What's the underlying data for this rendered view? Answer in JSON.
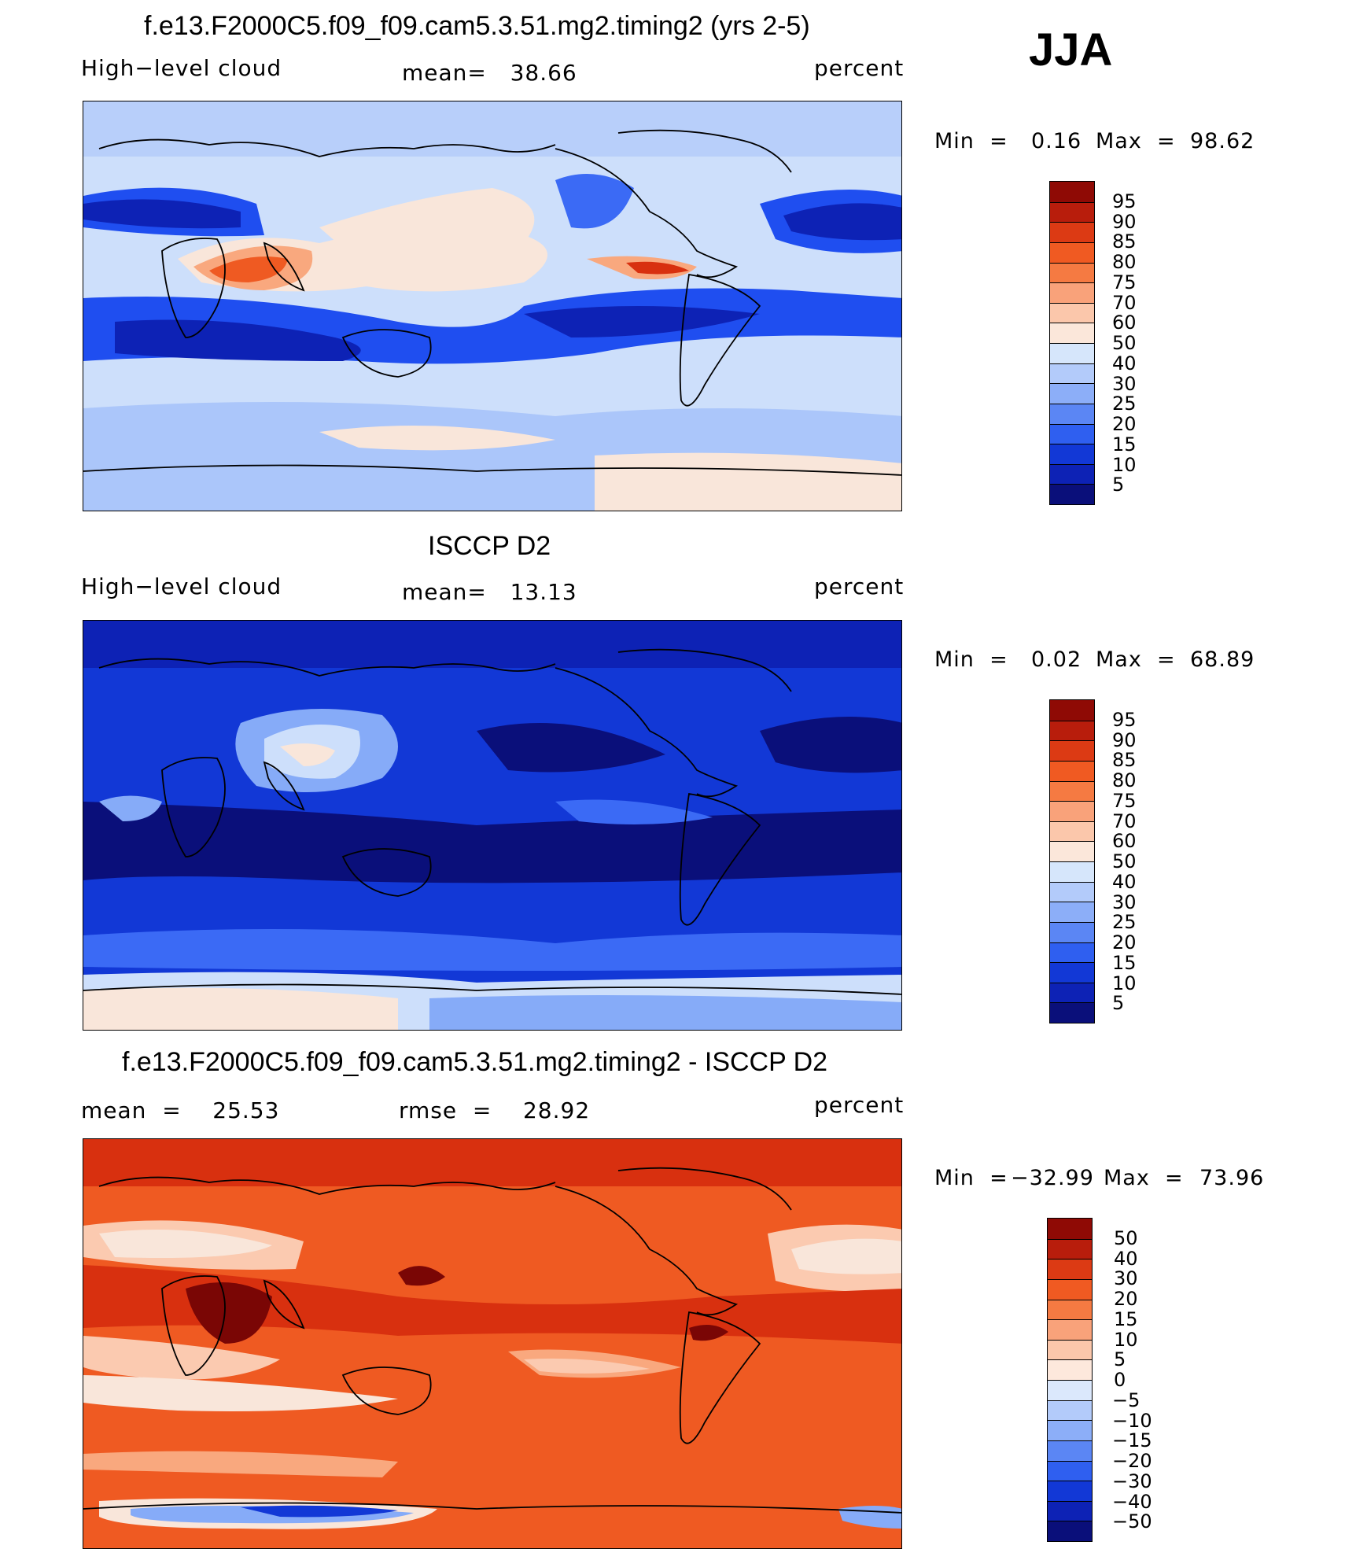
{
  "season": "JJA",
  "palette": {
    "diverging": [
      "#0a0f7a",
      "#0d22b5",
      "#1238d6",
      "#1f4ef0",
      "#3b6af5",
      "#5d8af7",
      "#86abf8",
      "#abc6fa",
      "#cddffb",
      "#f9e6da",
      "#fbcab0",
      "#f9a87e",
      "#f5844f",
      "#ef5a22",
      "#d8300f",
      "#a8150a",
      "#7a0605"
    ]
  },
  "panels": [
    {
      "title": "f.e13.F2000C5.f09_f09.cam5.3.51.mg2.timing2 (yrs 2-5)",
      "left_label": "High−level cloud",
      "center_label": "mean=   38.66",
      "right_label": "percent",
      "min_label": "Min  =",
      "min_value": "0.16",
      "max_label": "Max  =",
      "max_value": "98.62",
      "map_icon": "world-map-high-cloud-model",
      "colorbar": {
        "levels": [
          "95",
          "90",
          "85",
          "80",
          "75",
          "70",
          "60",
          "50",
          "40",
          "30",
          "25",
          "20",
          "15",
          "10",
          "5"
        ],
        "colors": [
          "#8f0a05",
          "#b81d0c",
          "#dc3a14",
          "#f05a22",
          "#f57a42",
          "#f9a27a",
          "#fbc7ab",
          "#fbe7da",
          "#d6e6fb",
          "#b3cbfa",
          "#8caef8",
          "#5b86f4",
          "#2f5ff0",
          "#1238d6",
          "#0d22b5",
          "#0a0f7a"
        ]
      }
    },
    {
      "title": "ISCCP D2",
      "left_label": "High−level cloud",
      "center_label": "mean=   13.13",
      "right_label": "percent",
      "min_label": "Min  =",
      "min_value": "0.02",
      "max_label": "Max  =",
      "max_value": "68.89",
      "map_icon": "world-map-high-cloud-observed",
      "colorbar": {
        "levels": [
          "95",
          "90",
          "85",
          "80",
          "75",
          "70",
          "60",
          "50",
          "40",
          "30",
          "25",
          "20",
          "15",
          "10",
          "5"
        ],
        "colors": [
          "#8f0a05",
          "#b81d0c",
          "#dc3a14",
          "#f05a22",
          "#f57a42",
          "#f9a27a",
          "#fbc7ab",
          "#fbe7da",
          "#d6e6fb",
          "#b3cbfa",
          "#8caef8",
          "#5b86f4",
          "#2f5ff0",
          "#1238d6",
          "#0d22b5",
          "#0a0f7a"
        ]
      }
    },
    {
      "title": "f.e13.F2000C5.f09_f09.cam5.3.51.mg2.timing2 - ISCCP D2",
      "left_label": "mean  =    25.53",
      "center_label": "rmse  =    28.92",
      "right_label": "percent",
      "min_label": "Min  =",
      "min_value": "−32.99",
      "max_label": "Max  =",
      "max_value": "73.96",
      "map_icon": "world-map-high-cloud-difference",
      "colorbar": {
        "levels": [
          "50",
          "40",
          "30",
          "20",
          "15",
          "10",
          "5",
          "0",
          "−5",
          "−10",
          "−15",
          "−20",
          "−30",
          "−40",
          "−50"
        ],
        "colors": [
          "#8f0a05",
          "#b81d0c",
          "#dc3a14",
          "#f05a22",
          "#f57a42",
          "#f9a27a",
          "#fbc7ab",
          "#fde8dc",
          "#dbe8fc",
          "#b3cbfa",
          "#8caef8",
          "#5b86f4",
          "#2f5ff0",
          "#1238d6",
          "#0d22b5",
          "#0a0f7a"
        ]
      }
    }
  ]
}
